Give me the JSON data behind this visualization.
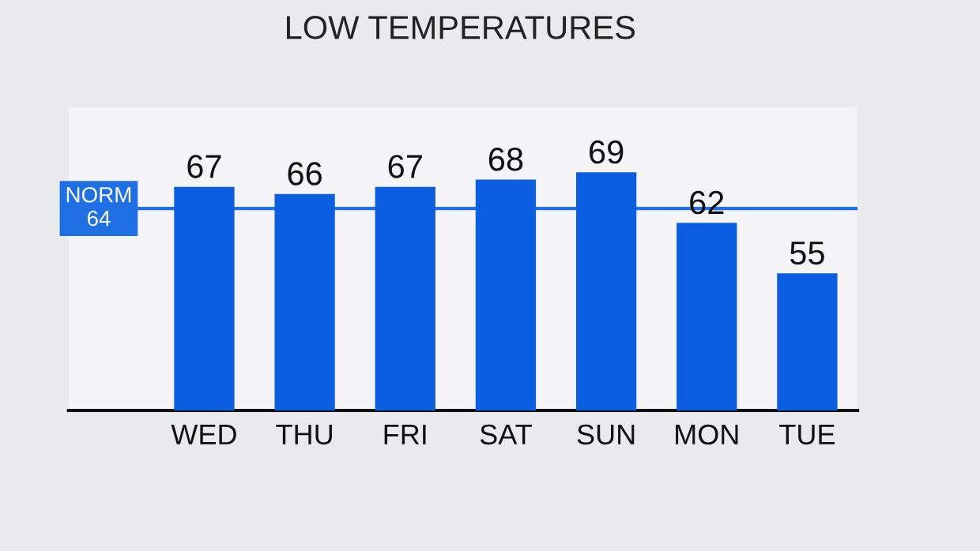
{
  "chart_data": {
    "type": "bar",
    "title": "LOW TEMPERATURES",
    "categories": [
      "WED",
      "THU",
      "FRI",
      "SAT",
      "SUN",
      "MON",
      "TUE"
    ],
    "values": [
      67,
      66,
      67,
      68,
      69,
      62,
      55
    ],
    "color": "#0b5ee0",
    "ylim": [
      36,
      78
    ],
    "data_labels": true,
    "grid": false,
    "ref_lines": [
      {
        "axis": "y",
        "value": 64,
        "label": "NORM\n64",
        "color": "#1f6fe5",
        "line_style": "solid"
      }
    ]
  }
}
